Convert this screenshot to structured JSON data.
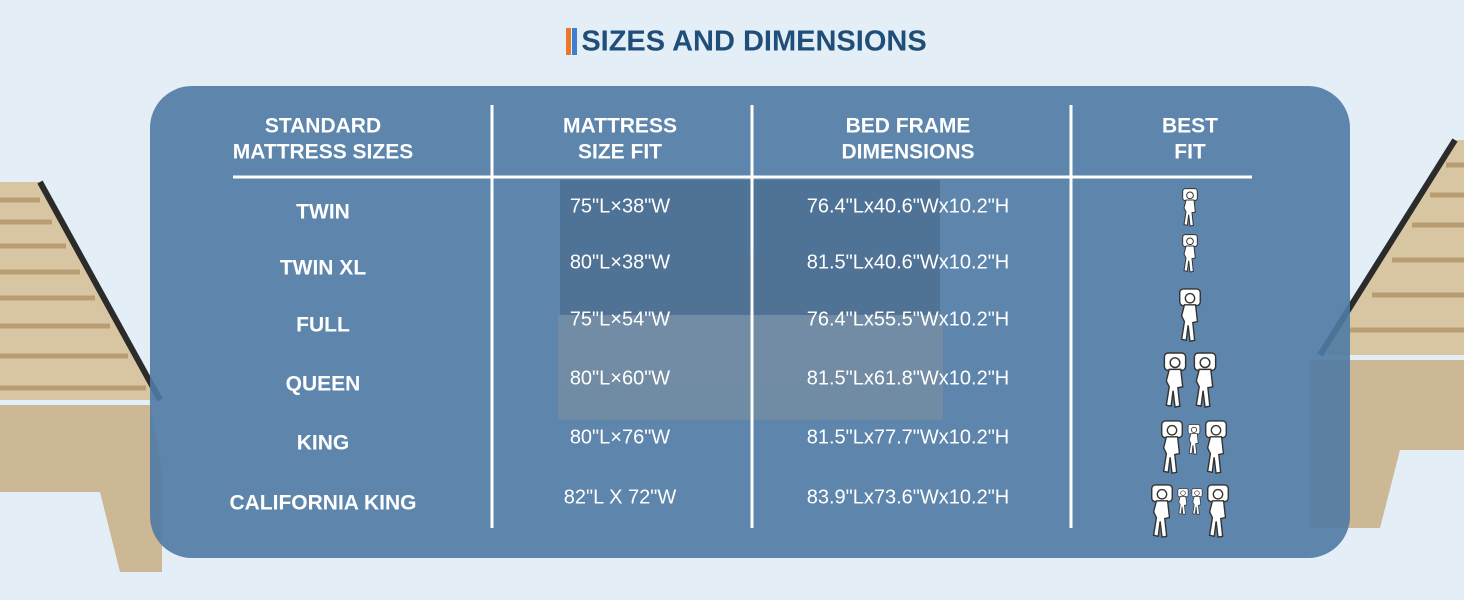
{
  "title": "SIZES AND DIMENSIONS",
  "table": {
    "headers": [
      [
        "STANDARD",
        "MATTRESS SIZES"
      ],
      [
        "MATTRESS",
        "SIZE FIT"
      ],
      [
        "BED FRAME",
        "DIMENSIONS"
      ],
      [
        "BEST",
        "FIT"
      ]
    ],
    "rows": [
      [
        "TWIN",
        "75\"L×38\"W",
        "76.4\"Lx40.6\"Wx10.2\"H"
      ],
      [
        "TWIN XL",
        "80\"L×38\"W",
        "81.5\"Lx40.6\"Wx10.2\"H"
      ],
      [
        "FULL",
        "75\"L×54\"W",
        "76.4\"Lx55.5\"Wx10.2\"H"
      ],
      [
        "QUEEN",
        "80\"L×60\"W",
        "81.5\"Lx61.8\"Wx10.2\"H"
      ],
      [
        "KING",
        "80\"L×76\"W",
        "81.5\"Lx77.7\"Wx10.2\"H"
      ],
      [
        "CALIFORNIA KING",
        "82\"L X 72\"W",
        "83.9\"Lx73.6\"Wx10.2\"H"
      ]
    ]
  }
}
